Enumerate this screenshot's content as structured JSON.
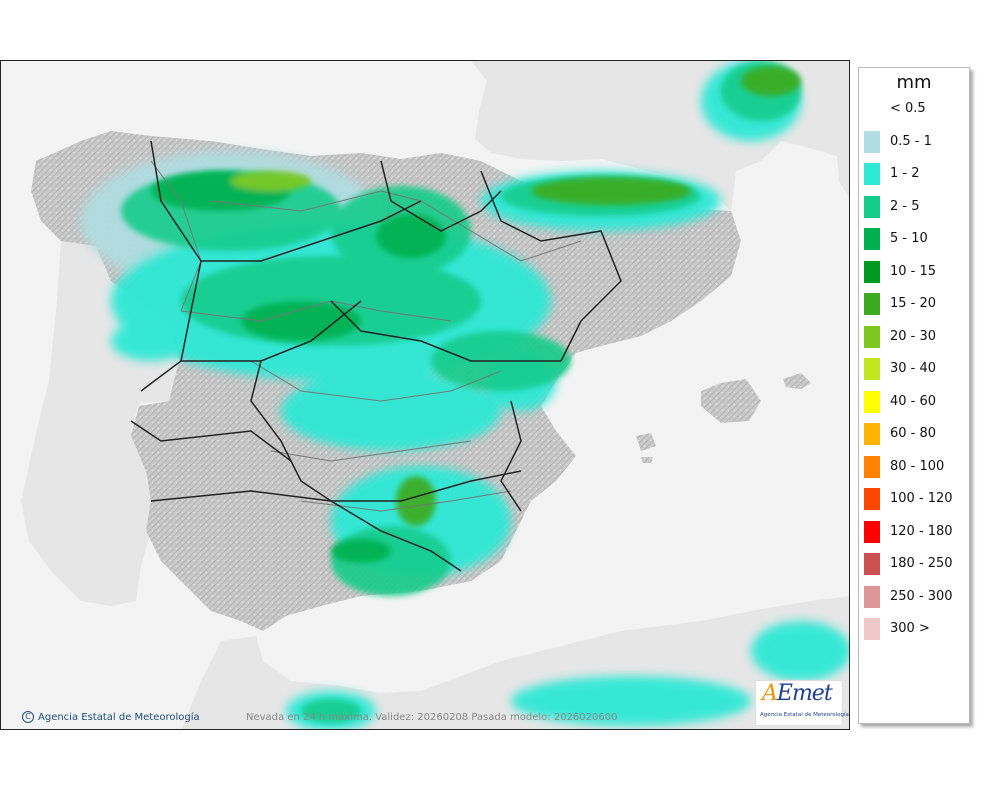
{
  "legend": {
    "unit": "mm",
    "items": [
      {
        "label": "< 0.5",
        "color": "#ffffff"
      },
      {
        "label": "0.5 - 1",
        "color": "#b0dde1"
      },
      {
        "label": "1 - 2",
        "color": "#2ee8d6"
      },
      {
        "label": "2 - 5",
        "color": "#14cc8c"
      },
      {
        "label": "5 - 10",
        "color": "#00b050"
      },
      {
        "label": "10 - 15",
        "color": "#009a1e"
      },
      {
        "label": "15 - 20",
        "color": "#3caa1e"
      },
      {
        "label": "20 - 30",
        "color": "#7dc81e"
      },
      {
        "label": "30 - 40",
        "color": "#c3e61e"
      },
      {
        "label": "40 - 60",
        "color": "#ffff00"
      },
      {
        "label": "60 - 80",
        "color": "#ffb400"
      },
      {
        "label": "80 - 100",
        "color": "#ff8200"
      },
      {
        "label": "100 - 120",
        "color": "#ff4600"
      },
      {
        "label": "120 - 180",
        "color": "#ff0000"
      },
      {
        "label": "180 - 250",
        "color": "#cd5050"
      },
      {
        "label": "250 - 300",
        "color": "#dc9696"
      },
      {
        "label": "300 >",
        "color": "#f0c8c8"
      }
    ]
  },
  "footer": {
    "credit": "Agencia Estatal de Meteorología",
    "validity": "Nevada en 24 h máxima. Validez: 20260208 Pasada modelo: 2026020600"
  },
  "logo": {
    "mark_a": "A",
    "mark_rest": "Emet",
    "subtitle": "Agencia Estatal de Meteorología"
  },
  "colors": {
    "land": "#cfcfcf",
    "sea": "#f3f3f3",
    "border": "#222222",
    "region_border": "#777777"
  }
}
